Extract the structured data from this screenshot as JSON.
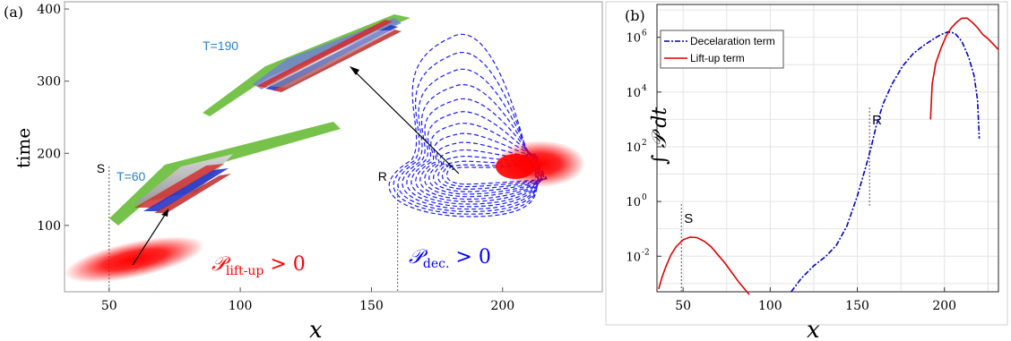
{
  "chart_data": [
    {
      "type": "scatter",
      "panel_label": "(a)",
      "xlabel": "x",
      "ylabel": "time",
      "xlim": [
        33,
        238
      ],
      "ylim": [
        8,
        410
      ],
      "x_ticks": [
        "50",
        "100",
        "150",
        "200"
      ],
      "y_ticks": [
        "100",
        "200",
        "300",
        "400"
      ],
      "markers": [
        {
          "label": "S",
          "x": 50
        },
        {
          "label": "R",
          "x": 160
        }
      ],
      "snapshots": [
        {
          "label": "T=60",
          "x_start": 70,
          "x_end": 150,
          "time_start": 110,
          "time_end": 240
        },
        {
          "label": "T=190",
          "x_start": 120,
          "x_end": 195,
          "time_start": 300,
          "time_end": 420
        }
      ],
      "regions": [
        {
          "name": "lift-up",
          "label_main": "𝒫",
          "label_sub": "lift-up",
          "label_rel": " > 0",
          "color": "#ff0000",
          "x_center": 65,
          "time_center": 45
        },
        {
          "name": "deceleration",
          "label_main": "𝒫",
          "label_sub": "dec.",
          "label_rel": " > 0",
          "color": "#0000ff",
          "x_center": 195,
          "time_center": 190
        }
      ]
    },
    {
      "type": "line",
      "panel_label": "(b)",
      "xlabel": "x",
      "ylabel": "∫ 𝒫 dt",
      "yscale": "log",
      "xlim": [
        35,
        231
      ],
      "ylim": [
        -3.3,
        7.2
      ],
      "x_ticks": [
        50,
        100,
        150,
        200
      ],
      "y_ticks": [
        {
          "exp": -2,
          "label": "10",
          "sup": "-2"
        },
        {
          "exp": 0,
          "label": "10",
          "sup": "0"
        },
        {
          "exp": 2,
          "label": "10",
          "sup": "2"
        },
        {
          "exp": 4,
          "label": "10",
          "sup": "4"
        },
        {
          "exp": 6,
          "label": "10",
          "sup": "6"
        }
      ],
      "grid": true,
      "legend_position": "top-left",
      "markers": [
        {
          "label": "S",
          "x": 49
        },
        {
          "label": "R",
          "x": 157
        }
      ],
      "series": [
        {
          "name": "Decelaration term",
          "color": "#0000cc",
          "style": "dash-dot",
          "x": [
            112,
            118,
            125,
            132,
            138,
            144,
            150,
            155,
            158,
            161,
            165,
            170,
            176,
            182,
            188,
            194,
            198,
            202,
            206,
            210,
            214,
            217,
            219,
            220
          ],
          "log10_y": [
            -3.3,
            -2.8,
            -2.35,
            -2.0,
            -1.6,
            -0.9,
            0.2,
            1.3,
            2.0,
            2.8,
            3.6,
            4.3,
            4.95,
            5.4,
            5.7,
            5.95,
            6.1,
            6.2,
            6.15,
            5.85,
            5.25,
            4.6,
            3.7,
            2.3
          ]
        },
        {
          "name": "Lift-up term",
          "color": "#e00000",
          "style": "solid",
          "x": [
            36,
            38,
            40,
            43,
            46,
            50,
            54,
            58,
            62,
            66,
            70,
            74,
            78,
            82,
            86,
            88
          ],
          "log10_y": [
            -3.2,
            -2.75,
            -2.4,
            -1.95,
            -1.65,
            -1.4,
            -1.3,
            -1.32,
            -1.45,
            -1.65,
            -1.95,
            -2.25,
            -2.6,
            -2.95,
            -3.25,
            -3.4
          ],
          "x2": [
            192,
            193,
            195,
            198,
            201,
            204,
            207,
            210,
            213,
            216,
            219,
            222,
            225,
            228,
            231
          ],
          "log10_y2": [
            3.0,
            4.3,
            5.05,
            5.6,
            6.05,
            6.35,
            6.55,
            6.7,
            6.7,
            6.55,
            6.35,
            6.1,
            5.95,
            5.75,
            5.55
          ]
        }
      ]
    }
  ]
}
